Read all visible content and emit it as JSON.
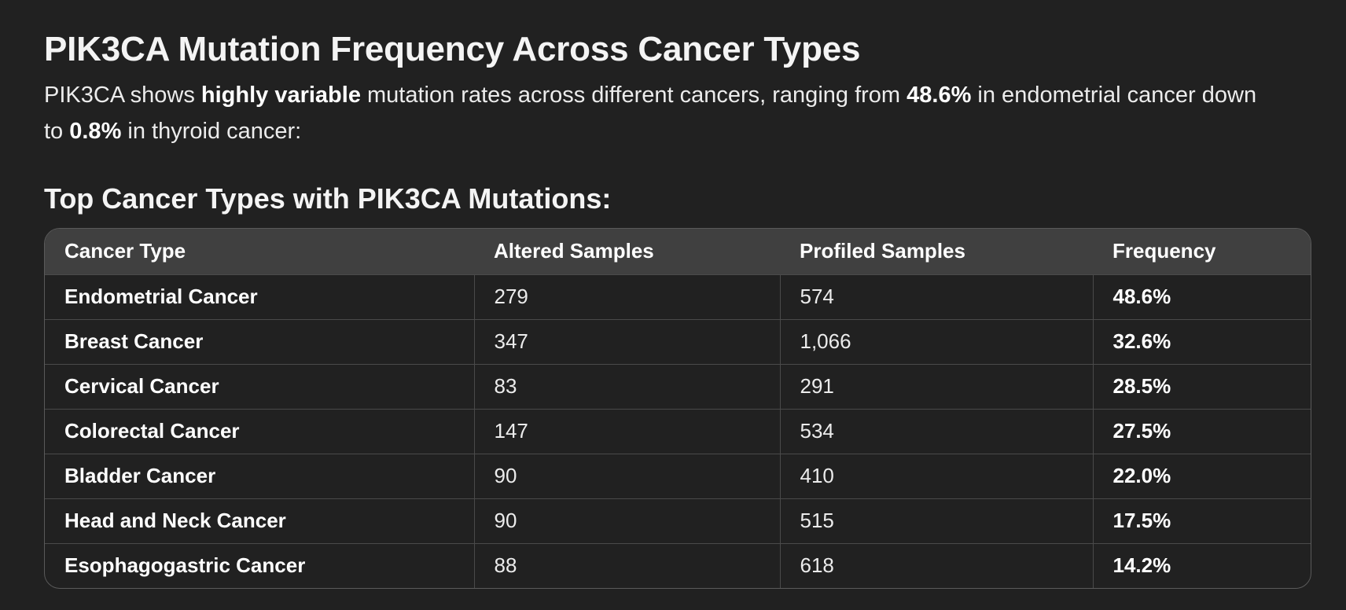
{
  "title": "PIK3CA Mutation Frequency Across Cancer Types",
  "intro": {
    "t1": "PIK3CA shows ",
    "b1": "highly variable",
    "t2": " mutation rates across different cancers, ranging from ",
    "b2": "48.6%",
    "t3": " in endometrial cancer down to ",
    "b3": "0.8%",
    "t4": " in thyroid cancer:"
  },
  "section_heading": "Top Cancer Types with PIK3CA Mutations:",
  "table": {
    "headers": [
      "Cancer Type",
      "Altered Samples",
      "Profiled Samples",
      "Frequency"
    ],
    "rows": [
      {
        "cancer_type": "Endometrial Cancer",
        "altered": "279",
        "profiled": "574",
        "frequency": "48.6%"
      },
      {
        "cancer_type": "Breast Cancer",
        "altered": "347",
        "profiled": "1,066",
        "frequency": "32.6%"
      },
      {
        "cancer_type": "Cervical Cancer",
        "altered": "83",
        "profiled": "291",
        "frequency": "28.5%"
      },
      {
        "cancer_type": "Colorectal Cancer",
        "altered": "147",
        "profiled": "534",
        "frequency": "27.5%"
      },
      {
        "cancer_type": "Bladder Cancer",
        "altered": "90",
        "profiled": "410",
        "frequency": "22.0%"
      },
      {
        "cancer_type": "Head and Neck Cancer",
        "altered": "90",
        "profiled": "515",
        "frequency": "17.5%"
      },
      {
        "cancer_type": "Esophagogastric Cancer",
        "altered": "88",
        "profiled": "618",
        "frequency": "14.2%"
      }
    ]
  }
}
